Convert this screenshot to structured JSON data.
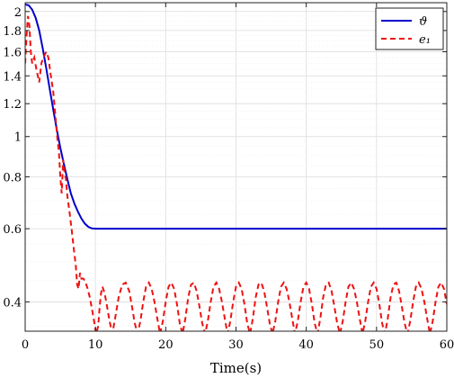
{
  "chart_data": {
    "type": "line",
    "title": "",
    "xlabel": "Time(s)",
    "ylabel": "",
    "xlim": [
      0,
      60
    ],
    "ylim": [
      0.34,
      2.1
    ],
    "yscale": "log",
    "grid": true,
    "legend_position": "top-right",
    "x_ticks": [
      0,
      10,
      20,
      30,
      40,
      50,
      60
    ],
    "x_tick_labels": [
      "0",
      "10",
      "20",
      "30",
      "40",
      "50",
      "60"
    ],
    "y_ticks": [
      0.4,
      0.6,
      0.8,
      1,
      1.2,
      1.4,
      1.6,
      1.8,
      2
    ],
    "y_tick_labels": [
      "0.4",
      "0.6",
      "0.8",
      "1",
      "1.2",
      "1.4",
      "1.6",
      "1.8",
      "2"
    ],
    "series": [
      {
        "name": "ϑ",
        "color": "#0000cc",
        "style": "solid",
        "x": [
          0,
          0.5,
          1,
          1.5,
          2,
          2.5,
          3,
          3.5,
          4,
          4.5,
          5,
          5.5,
          6,
          6.5,
          7,
          7.5,
          8,
          8.5,
          9,
          9.5,
          10,
          11,
          15,
          20,
          30,
          40,
          50,
          60
        ],
        "y": [
          2.08,
          2.07,
          2.02,
          1.93,
          1.8,
          1.63,
          1.46,
          1.3,
          1.16,
          1.04,
          0.94,
          0.86,
          0.79,
          0.73,
          0.69,
          0.66,
          0.635,
          0.617,
          0.606,
          0.601,
          0.6,
          0.6,
          0.6,
          0.6,
          0.6,
          0.6,
          0.6,
          0.6
        ]
      },
      {
        "name": "e₁",
        "color": "#ee1111",
        "style": "dashed",
        "x": [
          0,
          0.2,
          0.4,
          0.6,
          0.8,
          1.0,
          1.3,
          1.6,
          2.0,
          2.3,
          2.6,
          3.0,
          3.3,
          3.6,
          4.0,
          4.3,
          4.6,
          4.8,
          5.0,
          5.2,
          5.4,
          5.6,
          5.8,
          6.0,
          6.3,
          6.6,
          6.9,
          7.2,
          7.4,
          7.6,
          7.8,
          8.0,
          8.3,
          8.6,
          8.9,
          9.2,
          9.5,
          9.8,
          10.1,
          10.4,
          10.6,
          10.8,
          11.0,
          11.3,
          11.6,
          12.0,
          12.4,
          12.8,
          13.3,
          13.8,
          14.3,
          14.8,
          15.2,
          15.6,
          16.0,
          16.4,
          16.8,
          17.2,
          17.6,
          18.0,
          18.4,
          18.8,
          19.2,
          19.6,
          20.0,
          20.4,
          20.8,
          21.2,
          21.6,
          22.0,
          22.4,
          22.8,
          23.2,
          23.6,
          24.0,
          24.4,
          24.8,
          25.2,
          25.6,
          26.0,
          26.4,
          26.8,
          27.2,
          27.6,
          28.0,
          28.4,
          28.8,
          29.2,
          29.6,
          30.0,
          30.4,
          30.8,
          31.2,
          31.6,
          32.0,
          32.4,
          32.8,
          33.2,
          33.6,
          34.0,
          34.4,
          34.8,
          35.2,
          35.6,
          36.0,
          36.4,
          36.8,
          37.2,
          37.6,
          38.0,
          38.4,
          38.8,
          39.2,
          39.6,
          40.0,
          40.4,
          40.8,
          41.2,
          41.6,
          42.0,
          42.4,
          42.8,
          43.2,
          43.6,
          44.0,
          44.4,
          44.8,
          45.2,
          45.6,
          46.0,
          46.4,
          46.8,
          47.2,
          47.6,
          48.0,
          48.4,
          48.8,
          49.2,
          49.6,
          50.0,
          50.4,
          50.8,
          51.2,
          51.6,
          52.0,
          52.4,
          52.8,
          53.2,
          53.6,
          54.0,
          54.4,
          54.8,
          55.2,
          55.6,
          56.0,
          56.4,
          56.8,
          57.2,
          57.6,
          58.0,
          58.4,
          58.8,
          59.2,
          59.6,
          60.0
        ],
        "y": [
          1.5,
          1.75,
          1.95,
          1.85,
          1.6,
          1.5,
          1.55,
          1.45,
          1.35,
          1.5,
          1.55,
          1.6,
          1.55,
          1.42,
          1.28,
          1.12,
          0.98,
          0.92,
          0.8,
          0.73,
          0.88,
          0.82,
          0.79,
          0.72,
          0.66,
          0.6,
          0.54,
          0.49,
          0.44,
          0.43,
          0.47,
          0.455,
          0.455,
          0.445,
          0.43,
          0.41,
          0.385,
          0.36,
          0.335,
          0.35,
          0.39,
          0.42,
          0.435,
          0.42,
          0.395,
          0.36,
          0.335,
          0.365,
          0.41,
          0.44,
          0.445,
          0.425,
          0.39,
          0.355,
          0.335,
          0.36,
          0.4,
          0.435,
          0.445,
          0.43,
          0.4,
          0.365,
          0.335,
          0.36,
          0.4,
          0.435,
          0.445,
          0.43,
          0.395,
          0.355,
          0.335,
          0.365,
          0.41,
          0.44,
          0.445,
          0.425,
          0.39,
          0.355,
          0.335,
          0.36,
          0.4,
          0.435,
          0.445,
          0.43,
          0.4,
          0.365,
          0.335,
          0.36,
          0.4,
          0.435,
          0.445,
          0.43,
          0.395,
          0.355,
          0.335,
          0.365,
          0.41,
          0.44,
          0.445,
          0.425,
          0.39,
          0.355,
          0.335,
          0.36,
          0.4,
          0.435,
          0.445,
          0.43,
          0.4,
          0.365,
          0.335,
          0.36,
          0.4,
          0.435,
          0.445,
          0.43,
          0.395,
          0.355,
          0.335,
          0.365,
          0.41,
          0.44,
          0.445,
          0.425,
          0.39,
          0.355,
          0.335,
          0.36,
          0.4,
          0.435,
          0.445,
          0.43,
          0.4,
          0.365,
          0.335,
          0.36,
          0.4,
          0.435,
          0.445,
          0.43,
          0.395,
          0.355,
          0.335,
          0.365,
          0.41,
          0.44,
          0.445,
          0.425,
          0.39,
          0.355,
          0.335,
          0.36,
          0.4,
          0.435,
          0.445,
          0.43,
          0.4,
          0.365,
          0.335,
          0.36,
          0.4,
          0.435,
          0.445,
          0.43,
          0.395
        ]
      }
    ]
  }
}
